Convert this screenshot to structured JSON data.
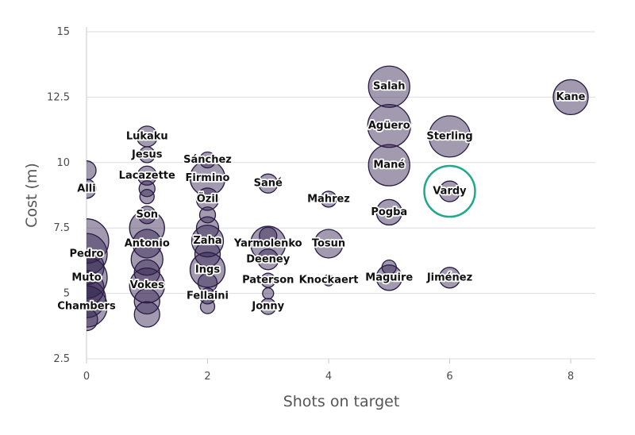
{
  "chart_data": {
    "type": "scatter",
    "xlabel": "Shots on target",
    "ylabel": "Cost (m)",
    "xlim": [
      0,
      8.4
    ],
    "ylim": [
      2.5,
      15
    ],
    "x_ticks": [
      0,
      2,
      4,
      6,
      8
    ],
    "y_ticks": [
      2.5,
      5,
      7.5,
      10,
      12.5,
      15
    ],
    "y_tick_labels": [
      "2.5",
      "5",
      "7.5",
      "10",
      "12.5",
      "15"
    ],
    "grid": "horizontal",
    "bubble_color": "#31214d",
    "highlight_color": "#1fa98a",
    "highlight_point": "Vardy",
    "points": [
      {
        "label": "Kane",
        "x": 8,
        "y": 12.5,
        "size": 22
      },
      {
        "label": "Salah",
        "x": 5,
        "y": 12.9,
        "size": 26
      },
      {
        "label": "Agüero",
        "x": 5,
        "y": 11.4,
        "size": 27
      },
      {
        "label": "Sterling",
        "x": 6,
        "y": 11.0,
        "size": 26
      },
      {
        "label": "Mané",
        "x": 5,
        "y": 9.9,
        "size": 26
      },
      {
        "label": "Vardy",
        "x": 6,
        "y": 8.9,
        "size": 13
      },
      {
        "label": "Pogba",
        "x": 5,
        "y": 8.1,
        "size": 16
      },
      {
        "label": "Mahrez",
        "x": 4,
        "y": 8.6,
        "size": 10
      },
      {
        "label": "Maguire",
        "x": 5,
        "y": 5.6,
        "size": 16
      },
      {
        "label": "",
        "x": 5,
        "y": 6.0,
        "size": 9
      },
      {
        "label": "Jiménez",
        "x": 6,
        "y": 5.6,
        "size": 13
      },
      {
        "label": "Knockaert",
        "x": 4,
        "y": 5.5,
        "size": 7
      },
      {
        "label": "Tosun",
        "x": 4,
        "y": 6.9,
        "size": 18
      },
      {
        "label": "Sané",
        "x": 3,
        "y": 9.2,
        "size": 12
      },
      {
        "label": "Yarmolenko",
        "x": 3,
        "y": 6.9,
        "size": 22
      },
      {
        "label": "",
        "x": 3,
        "y": 7.2,
        "size": 11
      },
      {
        "label": "Deeney",
        "x": 3,
        "y": 6.3,
        "size": 13
      },
      {
        "label": "Paterson",
        "x": 3,
        "y": 5.5,
        "size": 9
      },
      {
        "label": "",
        "x": 3,
        "y": 5.0,
        "size": 7
      },
      {
        "label": "Jonny",
        "x": 3,
        "y": 4.5,
        "size": 10
      },
      {
        "label": "Sánchez",
        "x": 2,
        "y": 10.1,
        "size": 10
      },
      {
        "label": "Firmino",
        "x": 2,
        "y": 9.4,
        "size": 22
      },
      {
        "label": "Özil",
        "x": 2,
        "y": 8.6,
        "size": 14
      },
      {
        "label": "",
        "x": 2,
        "y": 8.0,
        "size": 10
      },
      {
        "label": "",
        "x": 2,
        "y": 7.5,
        "size": 14
      },
      {
        "label": "Zaha",
        "x": 2,
        "y": 7.0,
        "size": 20
      },
      {
        "label": "",
        "x": 2,
        "y": 6.5,
        "size": 16
      },
      {
        "label": "Ings",
        "x": 2,
        "y": 5.9,
        "size": 22
      },
      {
        "label": "",
        "x": 2,
        "y": 5.4,
        "size": 12
      },
      {
        "label": "Fellaini",
        "x": 2,
        "y": 4.9,
        "size": 10
      },
      {
        "label": "",
        "x": 2,
        "y": 4.5,
        "size": 9
      },
      {
        "label": "Lukaku",
        "x": 1,
        "y": 11.0,
        "size": 13
      },
      {
        "label": "Jesus",
        "x": 1,
        "y": 10.3,
        "size": 10
      },
      {
        "label": "Lacazette",
        "x": 1,
        "y": 9.5,
        "size": 12
      },
      {
        "label": "",
        "x": 1,
        "y": 9.0,
        "size": 10
      },
      {
        "label": "",
        "x": 1,
        "y": 8.7,
        "size": 9
      },
      {
        "label": "Son",
        "x": 1,
        "y": 8.0,
        "size": 11
      },
      {
        "label": "",
        "x": 1,
        "y": 7.5,
        "size": 22
      },
      {
        "label": "Antonio",
        "x": 1,
        "y": 6.9,
        "size": 18
      },
      {
        "label": "",
        "x": 1,
        "y": 6.3,
        "size": 20
      },
      {
        "label": "",
        "x": 1,
        "y": 5.8,
        "size": 16
      },
      {
        "label": "Vokes",
        "x": 1,
        "y": 5.3,
        "size": 22
      },
      {
        "label": "",
        "x": 1,
        "y": 4.7,
        "size": 16
      },
      {
        "label": "",
        "x": 1,
        "y": 4.2,
        "size": 16
      },
      {
        "label": "",
        "x": 0,
        "y": 9.7,
        "size": 12
      },
      {
        "label": "Alli",
        "x": 0,
        "y": 9.0,
        "size": 12
      },
      {
        "label": "",
        "x": 0,
        "y": 7.0,
        "size": 28
      },
      {
        "label": "Pedro",
        "x": 0,
        "y": 6.5,
        "size": 26
      },
      {
        "label": "",
        "x": 0,
        "y": 6.0,
        "size": 22
      },
      {
        "label": "Muto",
        "x": 0,
        "y": 5.6,
        "size": 26
      },
      {
        "label": "",
        "x": 0,
        "y": 5.2,
        "size": 22
      },
      {
        "label": "",
        "x": 0,
        "y": 4.8,
        "size": 24
      },
      {
        "label": "Chambers",
        "x": 0,
        "y": 4.5,
        "size": 26
      },
      {
        "label": "",
        "x": 0,
        "y": 4.0,
        "size": 14
      }
    ]
  }
}
